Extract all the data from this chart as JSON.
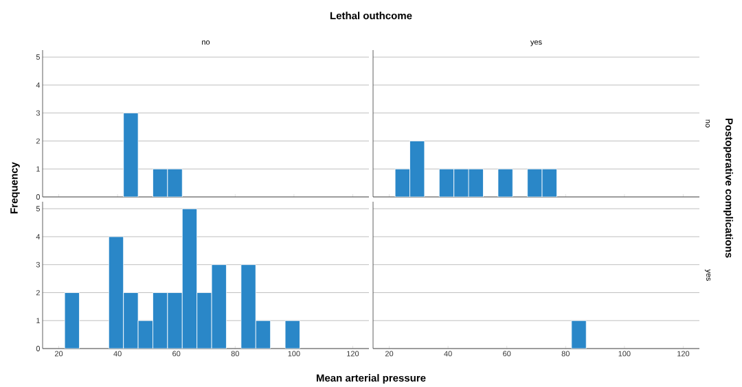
{
  "chart_data": [
    {
      "type": "histogram",
      "title": "no",
      "ylabel": "Frequency",
      "annotations": [
        "Lethal outhcome"
      ],
      "bins": [
        22,
        27,
        32,
        37,
        42,
        47,
        52,
        57,
        62,
        67,
        72,
        77,
        82,
        87,
        92,
        97,
        102
      ],
      "values": [
        0,
        0,
        0,
        0,
        3,
        0,
        1,
        1,
        0,
        0,
        0,
        0,
        0,
        0,
        0,
        0
      ],
      "color": "#2a87c8",
      "xlim": [
        14.5,
        125.5
      ],
      "ylim": [
        0,
        5.25
      ],
      "xticks": [
        20,
        40,
        60,
        80,
        100,
        120
      ],
      "yticks": [
        0,
        1,
        2,
        3,
        4,
        5
      ],
      "grid": "y",
      "tick_labels": "y"
    },
    {
      "type": "histogram",
      "title": "yes",
      "y2label": "no",
      "annotations": [
        "Postoperative complications"
      ],
      "bins": [
        22,
        27,
        32,
        37,
        42,
        47,
        52,
        57,
        62,
        67,
        72,
        77,
        82,
        87,
        92,
        97,
        102
      ],
      "values": [
        1,
        2,
        0,
        1,
        1,
        1,
        0,
        1,
        0,
        1,
        1,
        0,
        0,
        0,
        0,
        0
      ],
      "color": "#2a87c8",
      "xlim": [
        14.5,
        125.5
      ],
      "ylim": [
        0,
        5.25
      ],
      "xticks": [
        20,
        40,
        60,
        80,
        100,
        120
      ],
      "yticks": [
        0,
        1,
        2,
        3,
        4,
        5
      ],
      "grid": "y",
      "tick_labels": false
    },
    {
      "type": "histogram",
      "xlabel": "Mean arterial pressure",
      "bins": [
        22,
        27,
        32,
        37,
        42,
        47,
        52,
        57,
        62,
        67,
        72,
        77,
        82,
        87,
        92,
        97,
        102
      ],
      "values": [
        2,
        0,
        0,
        4,
        2,
        1,
        2,
        2,
        5,
        2,
        3,
        0,
        3,
        1,
        0,
        1
      ],
      "color": "#2a87c8",
      "xlim": [
        14.5,
        125.5
      ],
      "ylim": [
        0,
        5.25
      ],
      "xticks": [
        20,
        40,
        60,
        80,
        100,
        120
      ],
      "yticks": [
        0,
        1,
        2,
        3,
        4,
        5
      ],
      "grid": "y"
    },
    {
      "type": "histogram",
      "y2label": "yes",
      "bins": [
        22,
        27,
        32,
        37,
        42,
        47,
        52,
        57,
        62,
        67,
        72,
        77,
        82,
        87,
        92,
        97,
        102
      ],
      "values": [
        0,
        0,
        0,
        0,
        0,
        0,
        0,
        0,
        0,
        0,
        0,
        0,
        1,
        0,
        0,
        0
      ],
      "color": "#2a87c8",
      "xlim": [
        14.5,
        125.5
      ],
      "ylim": [
        0,
        5.25
      ],
      "xticks": [
        20,
        40,
        60,
        80,
        100,
        120
      ],
      "yticks": [
        0,
        1,
        2,
        3,
        4,
        5
      ],
      "grid": "y",
      "tick_labels": "x"
    }
  ]
}
